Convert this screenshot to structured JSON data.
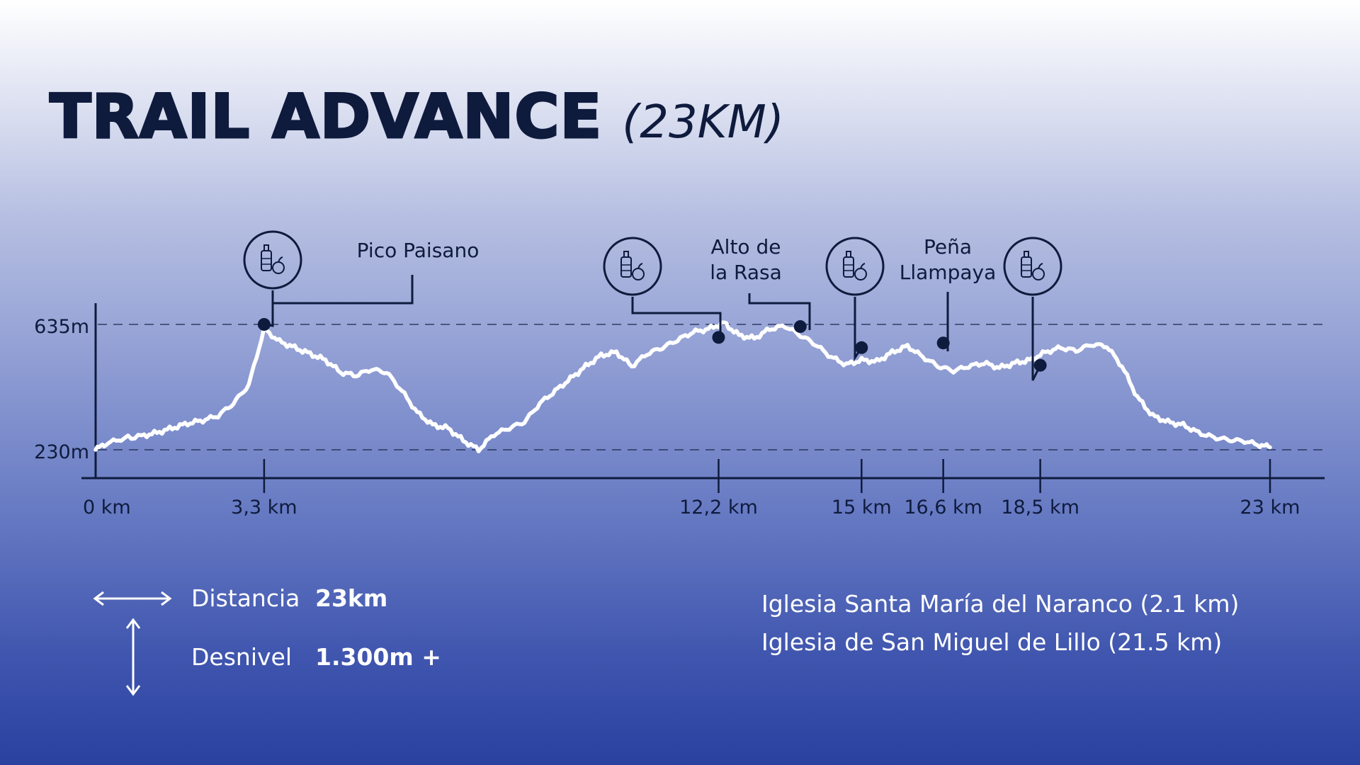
{
  "title": {
    "main": "TRAIL ADVANCE",
    "sub": "(23KM)"
  },
  "colors": {
    "ink": "#0f1b3d",
    "profile_line": "#ffffff",
    "background_top": "#ffffff",
    "background_bottom": "#2a41a0"
  },
  "chart_data": {
    "type": "line",
    "title": "TRAIL ADVANCE (23KM)",
    "xlabel": "",
    "ylabel": "",
    "xlim": [
      0,
      23
    ],
    "ylim": [
      180,
      680
    ],
    "grid": false,
    "reference_lines": [
      {
        "y": 635,
        "label": "635m",
        "style": "dashed"
      },
      {
        "y": 230,
        "label": "230m",
        "style": "dashed"
      }
    ],
    "x_ticks": [
      {
        "x": 0,
        "label": "0 km"
      },
      {
        "x": 3.3,
        "label": "3,3 km"
      },
      {
        "x": 12.2,
        "label": "12,2 km"
      },
      {
        "x": 15,
        "label": "15 km"
      },
      {
        "x": 16.6,
        "label": "16,6 km"
      },
      {
        "x": 18.5,
        "label": "18,5 km"
      },
      {
        "x": 23,
        "label": "23 km"
      }
    ],
    "series": [
      {
        "name": "",
        "x": [
          0,
          0.2,
          0.5,
          0.9,
          1.2,
          1.5,
          1.8,
          2.1,
          2.4,
          2.7,
          3.0,
          3.3,
          3.6,
          3.9,
          4.2,
          4.5,
          4.8,
          5.1,
          5.4,
          5.7,
          6.0,
          6.3,
          6.6,
          6.9,
          7.2,
          7.5,
          7.8,
          8.1,
          8.4,
          8.7,
          9.0,
          9.3,
          9.6,
          9.9,
          10.2,
          10.5,
          10.8,
          11.1,
          11.4,
          11.7,
          12.0,
          12.3,
          12.6,
          12.9,
          13.2,
          13.5,
          13.8,
          14.1,
          14.4,
          14.7,
          15.0,
          15.3,
          15.6,
          15.9,
          16.2,
          16.5,
          16.8,
          17.1,
          17.4,
          17.7,
          18.0,
          18.3,
          18.6,
          18.9,
          19.2,
          19.5,
          19.8,
          20.1,
          20.4,
          20.7,
          21.0,
          21.3,
          21.6,
          21.9,
          22.2,
          22.5,
          22.8,
          23.0
        ],
        "y": [
          230,
          250,
          265,
          275,
          285,
          300,
          315,
          325,
          340,
          380,
          440,
          620,
          580,
          560,
          540,
          520,
          480,
          470,
          490,
          480,
          420,
          350,
          310,
          300,
          260,
          230,
          280,
          300,
          320,
          380,
          420,
          460,
          500,
          535,
          545,
          500,
          540,
          560,
          585,
          610,
          620,
          640,
          600,
          590,
          620,
          630,
          600,
          570,
          530,
          505,
          520,
          515,
          545,
          565,
          530,
          500,
          485,
          500,
          510,
          495,
          510,
          520,
          545,
          560,
          550,
          570,
          565,
          500,
          400,
          340,
          320,
          310,
          285,
          270,
          262,
          258,
          245,
          238
        ]
      }
    ],
    "markers": [
      {
        "x": 3.3,
        "y": 635,
        "label": "Pico Paisano",
        "icon": "water-bottle-apple-icon"
      },
      {
        "x": 12.2,
        "y": 593,
        "label": "",
        "icon": "water-bottle-apple-icon"
      },
      {
        "x": 13.8,
        "y": 628,
        "label": "Alto de la Rasa",
        "icon": ""
      },
      {
        "x": 15.0,
        "y": 560,
        "label": "",
        "icon": "water-bottle-apple-icon"
      },
      {
        "x": 16.6,
        "y": 575,
        "label": "Peña Llampaya",
        "icon": ""
      },
      {
        "x": 18.5,
        "y": 503,
        "label": "",
        "icon": "water-bottle-apple-icon"
      }
    ]
  },
  "stats": {
    "distance_label": "Distancia",
    "distance_value": "23km",
    "elevation_label": "Desnivel",
    "elevation_value": "1.300m +"
  },
  "places": [
    "Iglesia Santa María del Naranco (2.1 km)",
    "Iglesia de San Miguel de Lillo (21.5 km)"
  ]
}
